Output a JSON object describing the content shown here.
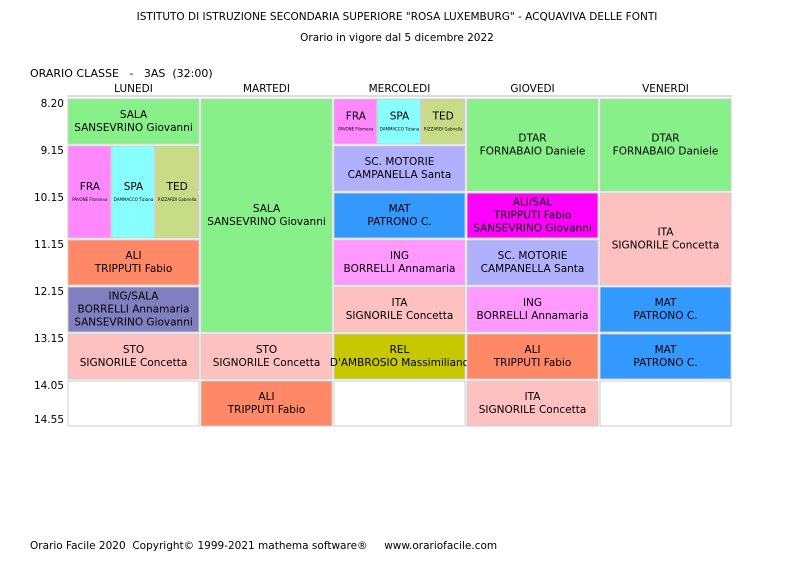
{
  "header": {
    "title": "ISTITUTO DI ISTRUZIONE SECONDARIA SUPERIORE \"ROSA LUXEMBURG\" - ACQUAVIVA DELLE FONTI",
    "subtitle": "Orario in vigore dal 5 dicembre 2022",
    "class_label": "ORARIO CLASSE   -   3AS  (32:00)"
  },
  "times": [
    "8.20",
    "9.15",
    "10.15",
    "11.15",
    "12.15",
    "13.15",
    "14.05",
    "14.55"
  ],
  "days": [
    {
      "name": "LUNEDI",
      "lessons": [
        {
          "hours": 1,
          "color": "#88f088",
          "lines": [
            "SALA",
            "SANSEVRINO Giovanni"
          ]
        },
        {
          "hours": 2,
          "parts": [
            {
              "color": "#ff88ff",
              "subject": "FRA",
              "teacher": "PAVONE Filomena"
            },
            {
              "color": "#88ffff",
              "subject": "SPA",
              "teacher": "DAMMACCO Tiziana"
            },
            {
              "color": "#c8dc88",
              "subject": "TED",
              "teacher": "RIZZARDI Gabriella"
            }
          ]
        },
        {
          "hours": 1,
          "color": "#ff8866",
          "lines": [
            "ALI",
            "TRIPPUTI Fabio"
          ]
        },
        {
          "hours": 1,
          "color": "#8080c0",
          "lines": [
            "ING/SALA",
            "BORRELLI Annamaria",
            "SANSEVRINO Giovanni"
          ]
        },
        {
          "hours": 1,
          "color": "#ffc0c0",
          "lines": [
            "STO",
            "SIGNORILE Concetta"
          ]
        }
      ]
    },
    {
      "name": "MARTEDI",
      "lessons": [
        {
          "hours": 5,
          "color": "#88f088",
          "lines": [
            "SALA",
            "SANSEVRINO Giovanni"
          ]
        },
        {
          "hours": 1,
          "color": "#ffc0c0",
          "lines": [
            "STO",
            "SIGNORILE Concetta"
          ]
        },
        {
          "hours": 1,
          "color": "#ff8866",
          "lines": [
            "ALI",
            "TRIPPUTI Fabio"
          ]
        }
      ]
    },
    {
      "name": "MERCOLEDI",
      "lessons": [
        {
          "hours": 1,
          "parts": [
            {
              "color": "#ff88ff",
              "subject": "FRA",
              "teacher": "PAVONE Filomena"
            },
            {
              "color": "#88ffff",
              "subject": "SPA",
              "teacher": "DAMMACCO Tiziana"
            },
            {
              "color": "#c8dc88",
              "subject": "TED",
              "teacher": "RIZZARDI Gabriella"
            }
          ]
        },
        {
          "hours": 1,
          "color": "#b0b0ff",
          "lines": [
            "SC. MOTORIE",
            "CAMPANELLA Santa"
          ]
        },
        {
          "hours": 1,
          "color": "#3399ff",
          "lines": [
            "MAT",
            "PATRONO C."
          ]
        },
        {
          "hours": 1,
          "color": "#ff99ff",
          "lines": [
            "ING",
            "BORRELLI Annamaria"
          ]
        },
        {
          "hours": 1,
          "color": "#ffc0c0",
          "lines": [
            "ITA",
            "SIGNORILE Concetta"
          ]
        },
        {
          "hours": 1,
          "color": "#c8c800",
          "lines": [
            "REL",
            "D'AMBROSIO Massimiliano"
          ]
        }
      ]
    },
    {
      "name": "GIOVEDI",
      "lessons": [
        {
          "hours": 2,
          "color": "#88f088",
          "lines": [
            "DTAR",
            "FORNABAIO Daniele"
          ]
        },
        {
          "hours": 1,
          "color": "#ff00ff",
          "lines": [
            "ALI/SAL",
            "TRIPPUTI Fabio",
            "SANSEVRINO Giovanni"
          ]
        },
        {
          "hours": 1,
          "color": "#b0b0ff",
          "lines": [
            "SC. MOTORIE",
            "CAMPANELLA Santa"
          ]
        },
        {
          "hours": 1,
          "color": "#ff99ff",
          "lines": [
            "ING",
            "BORRELLI Annamaria"
          ]
        },
        {
          "hours": 1,
          "color": "#ff8866",
          "lines": [
            "ALI",
            "TRIPPUTI Fabio"
          ]
        },
        {
          "hours": 1,
          "color": "#ffc0c0",
          "lines": [
            "ITA",
            "SIGNORILE Concetta"
          ]
        }
      ]
    },
    {
      "name": "VENERDI",
      "lessons": [
        {
          "hours": 2,
          "color": "#88f088",
          "lines": [
            "DTAR",
            "FORNABAIO Daniele"
          ]
        },
        {
          "hours": 2,
          "color": "#ffc0c0",
          "lines": [
            "ITA",
            "SIGNORILE Concetta"
          ]
        },
        {
          "hours": 1,
          "color": "#3399ff",
          "lines": [
            "MAT",
            "PATRONO C."
          ]
        },
        {
          "hours": 1,
          "color": "#3399ff",
          "lines": [
            "MAT",
            "PATRONO C."
          ]
        }
      ]
    }
  ],
  "footer": "Orario Facile 2020  Copyright© 1999-2021 mathema software®     www.orariofacile.com"
}
